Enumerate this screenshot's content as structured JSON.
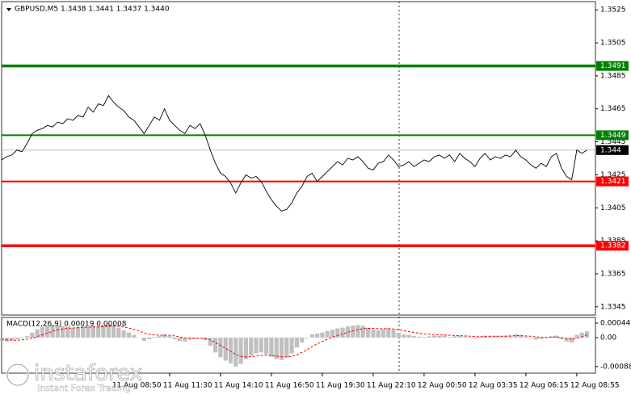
{
  "chart_data": [
    {
      "type": "line",
      "title": "GBPUSD,M5  1.3438 1.3441 1.3437 1.3440",
      "categories": [
        null,
        null,
        null,
        null,
        null,
        null,
        null,
        null,
        null,
        null,
        null,
        null,
        null,
        null,
        null,
        null,
        null,
        null,
        null,
        null,
        null,
        null,
        null,
        "11 Aug 08:50",
        null,
        null,
        null,
        null,
        null,
        null,
        null,
        null,
        null,
        "11 Aug 11:30",
        null,
        null,
        null,
        null,
        null,
        null,
        null,
        null,
        null,
        "11 Aug 14:10",
        null,
        null,
        null,
        null,
        null,
        null,
        null,
        null,
        null,
        "11 Aug 16:50",
        null,
        null,
        null,
        null,
        null,
        null,
        null,
        null,
        null,
        "11 Aug 19:30",
        null,
        null,
        null,
        null,
        null,
        null,
        null,
        null,
        null,
        "11 Aug 22:10",
        null,
        null,
        null,
        null,
        null,
        null,
        null,
        null,
        null,
        "12 Aug 00:50",
        null,
        null,
        null,
        null,
        null,
        null,
        null,
        null,
        null,
        "12 Aug 03:35",
        null,
        null,
        null,
        null,
        null,
        null,
        null,
        null,
        null,
        "12 Aug 06:15",
        null,
        null,
        null,
        null,
        null,
        null,
        null,
        null,
        null,
        "12 Aug 08:55",
        null,
        null
      ],
      "series": [
        {
          "name": "GBPUSD",
          "color": "#000000",
          "values": [
            1.3434,
            1.3436,
            1.3437,
            1.344,
            1.3439,
            1.3444,
            1.345,
            1.3452,
            1.3453,
            1.3455,
            1.3454,
            1.3457,
            1.3456,
            1.3459,
            1.3458,
            1.3461,
            1.346,
            1.3466,
            1.3463,
            1.3468,
            1.3467,
            1.3473,
            1.3469,
            1.3466,
            1.3464,
            1.346,
            1.3458,
            1.3454,
            1.345,
            1.3455,
            1.346,
            1.3458,
            1.3465,
            1.3458,
            1.3455,
            1.3452,
            1.345,
            1.3455,
            1.3453,
            1.3456,
            1.3449,
            1.344,
            1.3432,
            1.3426,
            1.3424,
            1.342,
            1.3414,
            1.342,
            1.3425,
            1.3423,
            1.3424,
            1.3421,
            1.3415,
            1.341,
            1.3406,
            1.3403,
            1.3404,
            1.3408,
            1.3414,
            1.3418,
            1.3424,
            1.3426,
            1.3421,
            1.3424,
            1.3427,
            1.343,
            1.3433,
            1.3431,
            1.3435,
            1.3434,
            1.3436,
            1.3433,
            1.3429,
            1.3428,
            1.3432,
            1.3433,
            1.3437,
            1.3434,
            1.343,
            1.3431,
            1.3433,
            1.343,
            1.3432,
            1.3434,
            1.3433,
            1.3436,
            1.3437,
            1.3435,
            1.3437,
            1.3433,
            1.3438,
            1.3435,
            1.3433,
            1.343,
            1.3435,
            1.3438,
            1.3434,
            1.3436,
            1.3435,
            1.3437,
            1.3436,
            1.344,
            1.3436,
            1.3434,
            1.3431,
            1.3429,
            1.3432,
            1.343,
            1.3436,
            1.3438,
            1.3429,
            1.3424,
            1.3422,
            1.344,
            1.3438,
            1.344
          ]
        }
      ],
      "ylim": [
        1.334,
        1.353
      ],
      "yticks": [
        1.3525,
        1.3505,
        1.3485,
        1.3465,
        1.3445,
        1.3425,
        1.3405,
        1.3385,
        1.3365,
        1.3345
      ],
      "levels": [
        {
          "value": 1.3491,
          "color": "#008000",
          "weight": "bold"
        },
        {
          "value": 1.3449,
          "color": "#008000",
          "weight": "normal"
        },
        {
          "value": 1.3421,
          "color": "#ff0000",
          "weight": "normal"
        },
        {
          "value": 1.3382,
          "color": "#ff0000",
          "weight": "bold"
        }
      ],
      "current_price": {
        "value": 1.344,
        "color": "#000000"
      }
    },
    {
      "type": "macd",
      "title": "MACD(12,26,9) 0.00019 0.00008",
      "series": [
        {
          "name": "histogram",
          "color": "#c0c0c0",
          "values": [
            -0.0001,
            -0.00012,
            -8e-05,
            -5e-05,
            -2e-05,
            5e-05,
            0.00015,
            0.00025,
            0.00032,
            0.00036,
            0.00038,
            0.00037,
            0.00035,
            0.00033,
            0.0003,
            0.00032,
            0.00035,
            0.00033,
            0.00036,
            0.00034,
            0.00038,
            0.0004,
            0.00036,
            0.0003,
            0.00022,
            0.00015,
            8e-05,
            0,
            -0.0001,
            -5e-05,
            2e-05,
            5e-05,
            0.0001,
            5e-05,
            -5e-05,
            -0.0001,
            -0.00012,
            -6e-05,
            -4e-05,
            -2e-05,
            -8e-05,
            -0.00025,
            -0.00045,
            -0.0006,
            -0.0007,
            -0.00078,
            -0.00088,
            -0.0008,
            -0.00065,
            -0.00055,
            -0.00048,
            -0.00045,
            -0.0005,
            -0.00058,
            -0.00065,
            -0.00068,
            -0.0006,
            -0.00048,
            -0.0003,
            -0.00015,
            -2e-05,
            0.0001,
            0.00012,
            0.00015,
            0.0002,
            0.00024,
            0.00028,
            0.0003,
            0.00034,
            0.00036,
            0.00038,
            0.00036,
            0.0003,
            0.00024,
            0.00022,
            0.00025,
            0.00028,
            0.00024,
            0.00015,
            0.0001,
            8e-05,
            5e-05,
            3e-05,
            2e-05,
            4e-05,
            6e-05,
            5e-05,
            6e-05,
            2e-05,
            4e-05,
            5e-05,
            3e-05,
            0,
            -3e-05,
            2e-05,
            6e-05,
            4e-05,
            5e-05,
            4e-05,
            6e-05,
            5e-05,
            0.0001,
            8e-05,
            3e-05,
            -2e-05,
            -6e-05,
            -4e-05,
            -2e-05,
            4e-05,
            6e-05,
            -5e-05,
            -0.00012,
            -0.00015,
            8e-05,
            0.00015,
            0.00019
          ]
        },
        {
          "name": "signal",
          "color": "#ff0000",
          "values": [
            -5e-05,
            -7e-05,
            -8e-05,
            -8e-05,
            -7e-05,
            -5e-05,
            -2e-05,
            3e-05,
            8e-05,
            0.00014,
            0.00019,
            0.00023,
            0.00026,
            0.00028,
            0.00029,
            0.0003,
            0.00031,
            0.00031,
            0.00032,
            0.00032,
            0.00033,
            0.00034,
            0.00035,
            0.00034,
            0.00032,
            0.00029,
            0.00025,
            0.0002,
            0.00014,
            0.0001,
            8e-05,
            7e-05,
            7e-05,
            7e-05,
            5e-05,
            2e-05,
            -1e-05,
            -2e-05,
            -2e-05,
            -2e-05,
            -3e-05,
            -7e-05,
            -0.00015,
            -0.00024,
            -0.00033,
            -0.00042,
            -0.00051,
            -0.00057,
            -0.00059,
            -0.00058,
            -0.00056,
            -0.00054,
            -0.00053,
            -0.00054,
            -0.00056,
            -0.00058,
            -0.00059,
            -0.00057,
            -0.00052,
            -0.00045,
            -0.00037,
            -0.00027,
            -0.00019,
            -0.00012,
            -5e-05,
            1e-05,
            6e-05,
            0.00011,
            0.00016,
            0.0002,
            0.00024,
            0.00027,
            0.00028,
            0.00028,
            0.00027,
            0.00027,
            0.00027,
            0.00026,
            0.00024,
            0.00021,
            0.00018,
            0.00016,
            0.00013,
            0.00011,
            0.0001,
            9e-05,
            8e-05,
            8e-05,
            7e-05,
            6e-05,
            6e-05,
            5e-05,
            4e-05,
            3e-05,
            3e-05,
            3e-05,
            4e-05,
            4e-05,
            4e-05,
            4e-05,
            5e-05,
            6e-05,
            6e-05,
            5e-05,
            4e-05,
            2e-05,
            1e-05,
            0,
            1e-05,
            2e-05,
            0,
            -3e-05,
            -5e-05,
            -2e-05,
            2e-05,
            8e-05
          ]
        }
      ],
      "ylim": [
        -0.00108,
        0.00061
      ],
      "yticks": [
        0.00044,
        {
          "value": 0,
          "label": "0.00"
        },
        -0.00088
      ]
    }
  ],
  "watermark": {
    "brand": "instaforex",
    "tagline": "Instant Forex Trading"
  }
}
